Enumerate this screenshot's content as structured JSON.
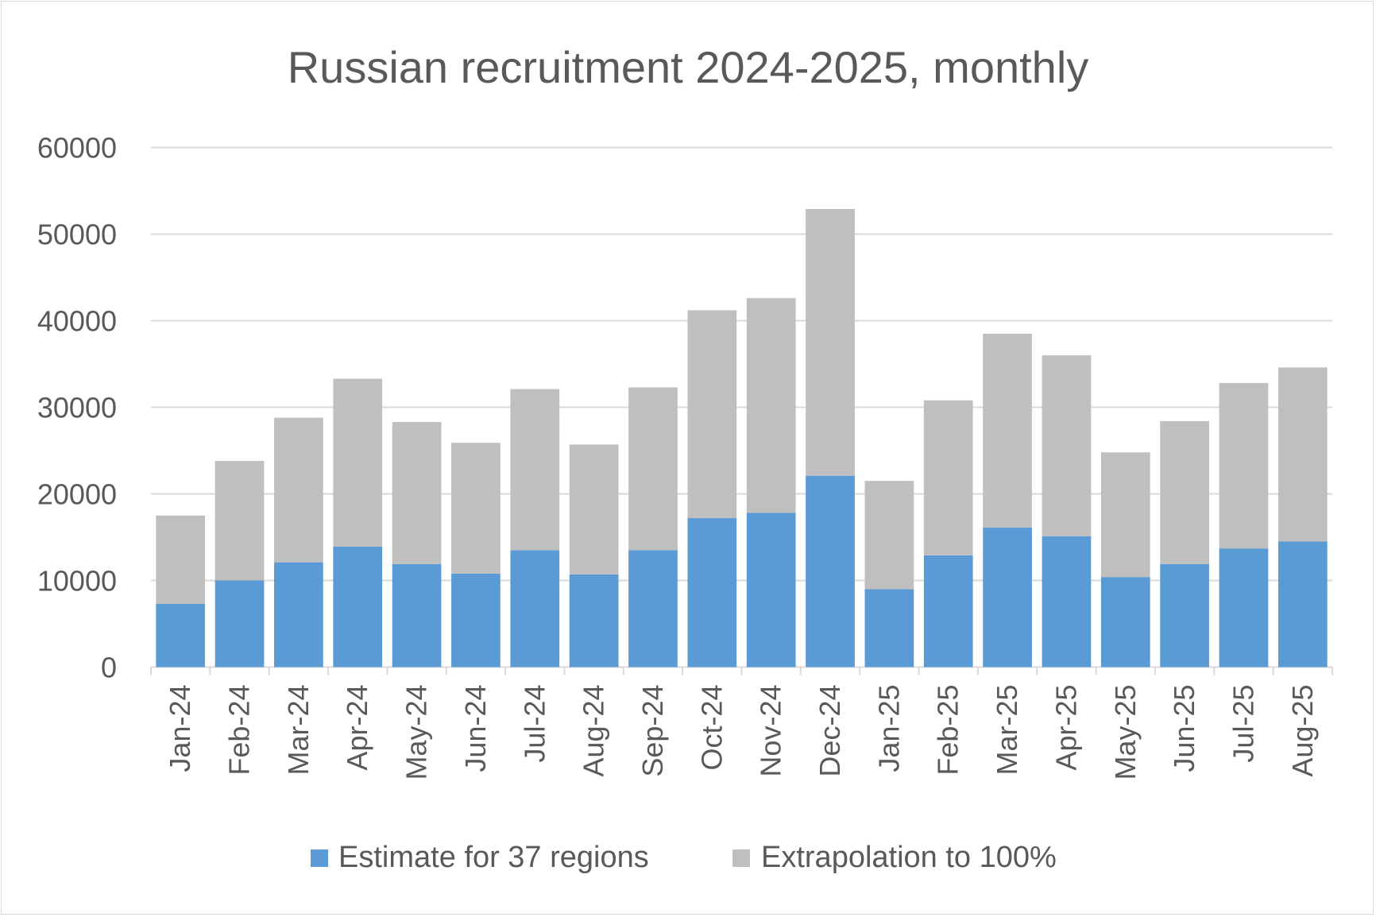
{
  "chart_data": {
    "type": "bar",
    "stacked": true,
    "title": "Russian recruitment 2024-2025, monthly",
    "xlabel": "",
    "ylabel": "",
    "ylim": [
      0,
      60000
    ],
    "yticks": [
      0,
      10000,
      20000,
      30000,
      40000,
      50000,
      60000
    ],
    "grid": true,
    "legend_position": "bottom",
    "categories": [
      "Jan-24",
      "Feb-24",
      "Mar-24",
      "Apr-24",
      "May-24",
      "Jun-24",
      "Jul-24",
      "Aug-24",
      "Sep-24",
      "Oct-24",
      "Nov-24",
      "Dec-24",
      "Jan-25",
      "Feb-25",
      "Mar-25",
      "Apr-25",
      "May-25",
      "Jun-25",
      "Jul-25",
      "Aug-25"
    ],
    "series": [
      {
        "name": "Estimate for 37 regions",
        "color": "#5b9bd5",
        "values": [
          7300,
          10000,
          12100,
          13900,
          11900,
          10800,
          13500,
          10700,
          13500,
          17200,
          17800,
          22100,
          9000,
          12900,
          16100,
          15100,
          10400,
          11900,
          13700,
          14500
        ]
      },
      {
        "name": "Extrapolation to 100%",
        "color": "#bfbfbf",
        "values": [
          10200,
          13800,
          16700,
          19400,
          16400,
          15100,
          18600,
          15000,
          18800,
          24000,
          24800,
          30800,
          12500,
          17900,
          22400,
          20900,
          14400,
          16500,
          19100,
          20100
        ]
      }
    ]
  }
}
